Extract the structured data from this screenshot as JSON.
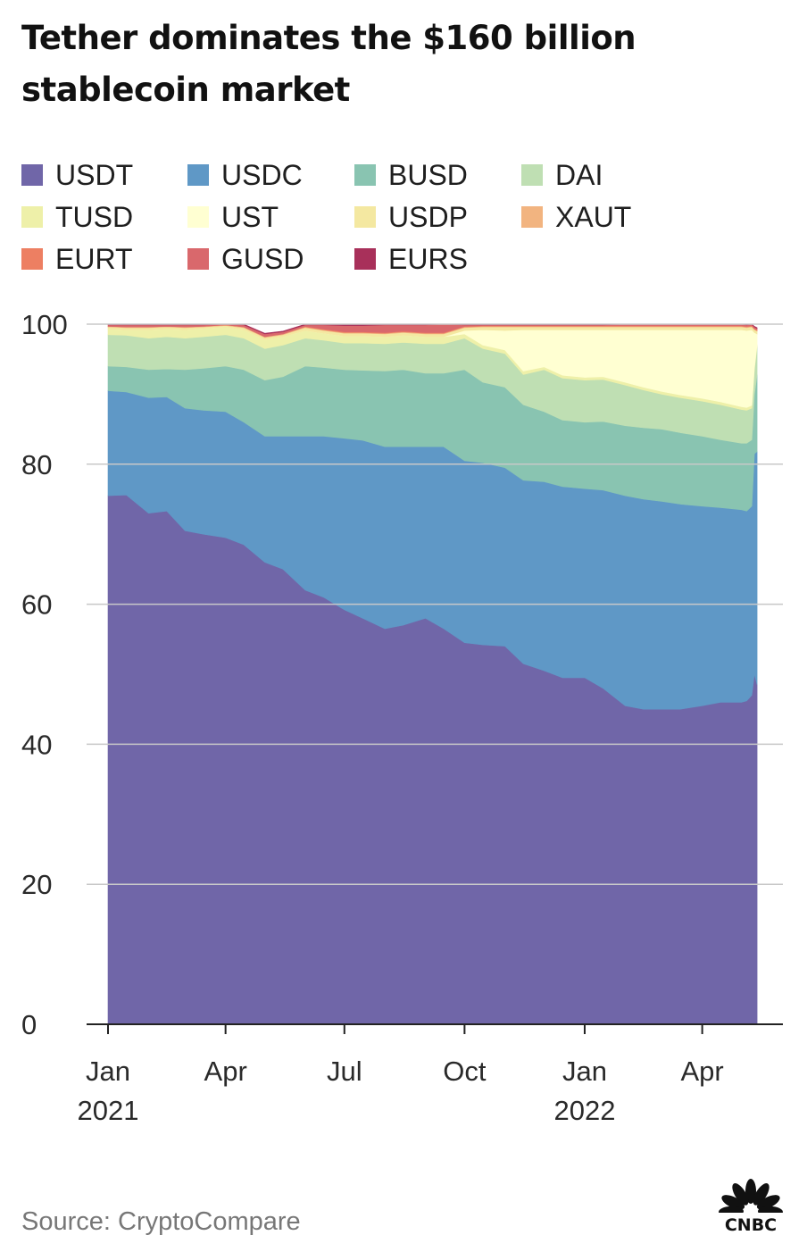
{
  "title": "Tether dominates the $160 billion stablecoin market",
  "source": "Source: CryptoCompare",
  "logo_text": "CNBC",
  "legend": [
    {
      "name": "USDT",
      "color": "#7066a8"
    },
    {
      "name": "USDC",
      "color": "#5f98c6"
    },
    {
      "name": "BUSD",
      "color": "#89c4b1"
    },
    {
      "name": "DAI",
      "color": "#bfdfb3"
    },
    {
      "name": "TUSD",
      "color": "#eef0a9"
    },
    {
      "name": "UST",
      "color": "#ffffd2"
    },
    {
      "name": "USDP",
      "color": "#f4e8a1"
    },
    {
      "name": "XAUT",
      "color": "#f2b480"
    },
    {
      "name": "EURT",
      "color": "#ed7f62"
    },
    {
      "name": "GUSD",
      "color": "#d9686c"
    },
    {
      "name": "EURS",
      "color": "#a8305a"
    }
  ],
  "chart_data": {
    "type": "area",
    "stacked": true,
    "unit": "percent of stablecoin market",
    "ylim": [
      0,
      100
    ],
    "yticks": [
      0,
      20,
      40,
      60,
      80,
      100
    ],
    "xlim": [
      "2021-01-01",
      "2022-05-15"
    ],
    "xticks": [
      {
        "date": "2021-01-01",
        "label": "Jan",
        "sublabel": "2021"
      },
      {
        "date": "2021-04-01",
        "label": "Apr",
        "sublabel": ""
      },
      {
        "date": "2021-07-01",
        "label": "Jul",
        "sublabel": ""
      },
      {
        "date": "2021-10-01",
        "label": "Oct",
        "sublabel": ""
      },
      {
        "date": "2022-01-01",
        "label": "Jan",
        "sublabel": "2022"
      },
      {
        "date": "2022-04-01",
        "label": "Apr",
        "sublabel": ""
      }
    ],
    "x": [
      "2021-01-01",
      "2021-01-15",
      "2021-02-01",
      "2021-02-15",
      "2021-03-01",
      "2021-03-15",
      "2021-04-01",
      "2021-04-15",
      "2021-05-01",
      "2021-05-15",
      "2021-06-01",
      "2021-06-15",
      "2021-07-01",
      "2021-07-15",
      "2021-08-01",
      "2021-08-15",
      "2021-09-01",
      "2021-09-15",
      "2021-10-01",
      "2021-10-15",
      "2021-11-01",
      "2021-11-15",
      "2021-12-01",
      "2021-12-15",
      "2022-01-01",
      "2022-01-15",
      "2022-02-01",
      "2022-02-15",
      "2022-03-01",
      "2022-03-15",
      "2022-04-01",
      "2022-04-15",
      "2022-05-01",
      "2022-05-05",
      "2022-05-09",
      "2022-05-11",
      "2022-05-13"
    ],
    "series": [
      {
        "name": "USDT",
        "values": [
          75.5,
          75.6,
          73,
          73.3,
          70.5,
          70,
          69.5,
          68.5,
          66,
          65,
          62,
          61,
          59.2,
          58,
          56.5,
          57,
          58,
          56.5,
          54.5,
          54.2,
          54,
          51.5,
          50.5,
          49.5,
          49.5,
          48,
          45.5,
          45,
          45,
          45,
          45.5,
          46,
          46,
          46.2,
          47,
          50,
          48.5
        ]
      },
      {
        "name": "USDC",
        "values": [
          15,
          14.7,
          16.5,
          16.3,
          17.5,
          17.7,
          18,
          17.5,
          18,
          19,
          22,
          23,
          24.5,
          25.4,
          26,
          25.5,
          24.5,
          26,
          26,
          26,
          25.5,
          26.2,
          27,
          27.3,
          27,
          28.3,
          30,
          30,
          29.7,
          29.3,
          28.5,
          27.8,
          27.5,
          27.1,
          27,
          31.5,
          33.3
        ]
      },
      {
        "name": "BUSD",
        "values": [
          3.5,
          3.6,
          4,
          4,
          5.5,
          6,
          6.5,
          7.5,
          8,
          8.5,
          10,
          9.8,
          9.8,
          10,
          10.8,
          11,
          10.5,
          10.5,
          13,
          11.5,
          11.5,
          10.8,
          10,
          9.5,
          9.5,
          9.8,
          10,
          10.2,
          10.3,
          10.2,
          10,
          9.7,
          9.5,
          9.7,
          9.5,
          8.5,
          11
        ]
      },
      {
        "name": "DAI",
        "values": [
          4.5,
          4.5,
          4.5,
          4.6,
          4.5,
          4.5,
          4.5,
          4.5,
          4.5,
          4.5,
          4,
          3.9,
          3.8,
          3.9,
          3.9,
          3.9,
          4.2,
          4.2,
          4.5,
          4.8,
          4.8,
          4.3,
          6,
          6,
          6,
          6,
          5.8,
          5.4,
          5,
          5,
          5,
          5,
          4.8,
          4.7,
          4.5,
          3.5,
          4
        ]
      },
      {
        "name": "TUSD",
        "values": [
          0.8,
          0.8,
          1.2,
          1.1,
          1.2,
          1.2,
          1.1,
          1.2,
          1.3,
          1.2,
          1.1,
          1,
          1,
          1,
          1,
          1,
          1,
          1,
          0.6,
          0.5,
          0.5,
          0.5,
          0.4,
          0.4,
          0.4,
          0.4,
          0.4,
          0.4,
          0.4,
          0.4,
          0.4,
          0.4,
          0.4,
          0.4,
          0.4,
          0.3,
          0.3
        ]
      },
      {
        "name": "UST",
        "values": [
          0,
          0,
          0,
          0,
          0,
          0,
          0,
          0,
          0,
          0,
          0,
          0,
          0,
          0,
          0,
          0,
          0,
          0,
          0.5,
          2.2,
          2.8,
          5.9,
          5.3,
          6.5,
          6.8,
          6.7,
          7.5,
          8.2,
          8.8,
          9.3,
          9.8,
          10.3,
          11,
          11,
          10.8,
          5,
          1.5
        ]
      },
      {
        "name": "USDP",
        "values": [
          0.3,
          0.3,
          0.3,
          0.3,
          0.3,
          0.2,
          0.2,
          0.3,
          0.3,
          0.3,
          0.4,
          0.4,
          0.4,
          0.4,
          0.4,
          0.4,
          0.4,
          0.4,
          0.4,
          0.4,
          0.5,
          0.4,
          0.4,
          0.4,
          0.4,
          0.4,
          0.4,
          0.4,
          0.4,
          0.4,
          0.4,
          0.4,
          0.4,
          0.4,
          0.4,
          0.4,
          0.4
        ]
      },
      {
        "name": "XAUT",
        "values": [
          0.1,
          0.1,
          0.1,
          0.1,
          0.1,
          0.1,
          0.1,
          0.1,
          0.1,
          0.1,
          0.1,
          0.1,
          0.1,
          0.1,
          0.1,
          0.1,
          0.1,
          0.1,
          0.1,
          0.1,
          0.1,
          0.1,
          0.1,
          0.1,
          0.1,
          0.1,
          0.1,
          0.1,
          0.1,
          0.1,
          0.1,
          0.1,
          0.1,
          0.1,
          0.1,
          0.1,
          0.1
        ]
      },
      {
        "name": "EURT",
        "values": [
          0,
          0,
          0,
          0,
          0,
          0,
          0,
          0,
          0,
          0,
          0.1,
          0.1,
          0.1,
          0.1,
          0.1,
          0.1,
          0.1,
          0.1,
          0.1,
          0.1,
          0.1,
          0.1,
          0.1,
          0.1,
          0.1,
          0.1,
          0.1,
          0.1,
          0.1,
          0.1,
          0.1,
          0.1,
          0.1,
          0.1,
          0.1,
          0.1,
          0.1
        ]
      },
      {
        "name": "GUSD",
        "values": [
          0.2,
          0.3,
          0.3,
          0.2,
          0.3,
          0.2,
          0.1,
          0.3,
          0.4,
          0.3,
          0.2,
          0.6,
          0.9,
          0.9,
          1.1,
          0.9,
          1.1,
          1.2,
          0.2,
          0.1,
          0.1,
          0.1,
          0.1,
          0.1,
          0.1,
          0.1,
          0.2,
          0.2,
          0.2,
          0.2,
          0.2,
          0.2,
          0.2,
          0.2,
          0.2,
          0.2,
          0.2
        ]
      },
      {
        "name": "EURS",
        "values": [
          0.1,
          0.1,
          0.1,
          0.1,
          0.1,
          0.1,
          0.1,
          0.1,
          0.1,
          0.1,
          0.1,
          0.1,
          0.1,
          0.1,
          0.1,
          0.1,
          0.1,
          0.1,
          0.1,
          0.1,
          0.1,
          0.1,
          0.1,
          0.1,
          0.1,
          0.1,
          0.1,
          0.1,
          0.1,
          0.1,
          0.1,
          0.1,
          0.1,
          0.1,
          0.1,
          0.1,
          0.1
        ]
      }
    ]
  }
}
